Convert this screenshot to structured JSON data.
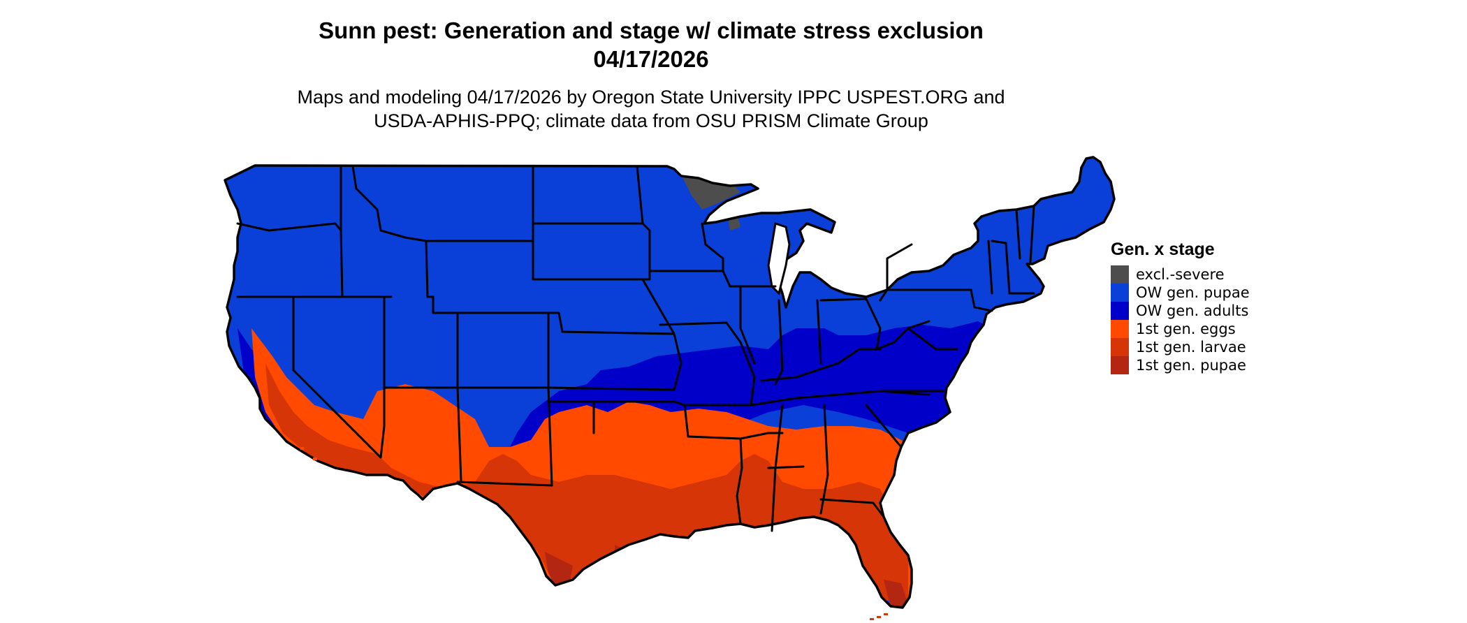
{
  "title": {
    "line1": "Sunn pest: Generation and stage w/ climate stress exclusion",
    "line2": "04/17/2026"
  },
  "subtitle": {
    "line1": "Maps and modeling 04/17/2026 by Oregon State University IPPC USPEST.ORG and",
    "line2": "USDA-APHIS-PPQ; climate data from OSU PRISM Climate Group"
  },
  "legend": {
    "title": "Gen. x stage",
    "items": [
      {
        "label": "excl.-severe",
        "color": "#4d4d4d"
      },
      {
        "label": "OW gen. pupae",
        "color": "#0a3fd8"
      },
      {
        "label": "OW gen. adults",
        "color": "#0000c8"
      },
      {
        "label": "1st gen. eggs",
        "color": "#ff4a00"
      },
      {
        "label": "1st gen. larvae",
        "color": "#d63508"
      },
      {
        "label": "1st gen. pupae",
        "color": "#b22612"
      }
    ]
  },
  "map": {
    "region": "contiguous-united-states",
    "boundaries": "state-borders",
    "border_color": "#000000"
  }
}
